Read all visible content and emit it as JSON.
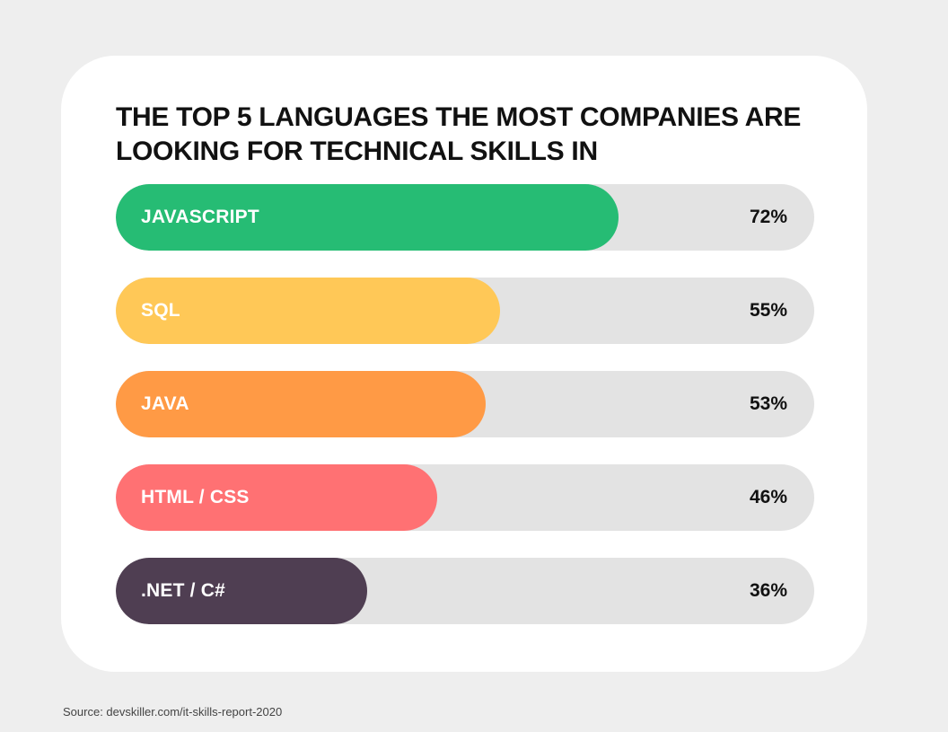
{
  "colors": {
    "background": "#eeeeee",
    "card": "#ffffff",
    "track": "#e3e3e3"
  },
  "chart_data": {
    "type": "bar",
    "orientation": "horizontal",
    "title": "THE TOP 5 LANGUAGES THE MOST COMPANIES ARE LOOKING FOR TECHNICAL SKILLS IN",
    "categories": [
      "JAVASCRIPT",
      "SQL",
      "JAVA",
      "HTML / CSS",
      ".NET / C#"
    ],
    "values": [
      72,
      55,
      53,
      46,
      36
    ],
    "value_labels": [
      "72%",
      "55%",
      "53%",
      "46%",
      "36%"
    ],
    "bar_colors": [
      "#26bc74",
      "#ffc857",
      "#ff9a45",
      "#ff7173",
      "#4f3e52"
    ],
    "unit": "%",
    "xlim": [
      0,
      100
    ],
    "grid": false,
    "source": "Source: devskiller.com/it-skills-report-2020"
  }
}
